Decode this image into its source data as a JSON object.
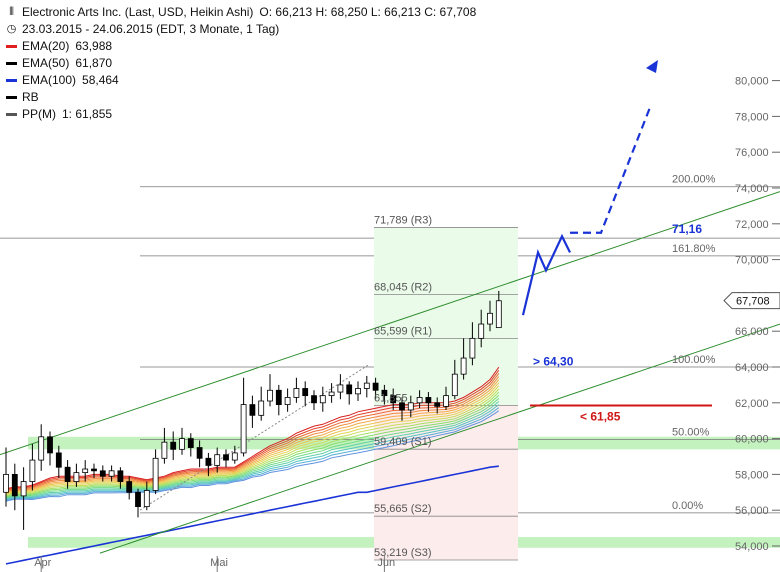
{
  "legend": {
    "title": "Electronic Arts Inc. (Last, USD, Heikin Ashi)",
    "ohlc": "O: 66,213  H: 68,250  L: 66,213  C: 67,708",
    "period": "23.03.2015 - 24.06.2015 (EDT, 3 Monate, 1 Tag)",
    "items": [
      {
        "label": "EMA(20)",
        "value": "63,988",
        "color": "#e0201e"
      },
      {
        "label": "EMA(50)",
        "value": "61,870",
        "color": "#000000"
      },
      {
        "label": "EMA(100)",
        "value": "58,464",
        "color": "#1a33d6"
      },
      {
        "label": "RB",
        "value": "",
        "color": "#000000"
      },
      {
        "label": "PP(M)",
        "value": "1: 61,855",
        "color": "#555555"
      }
    ]
  },
  "chart_data": {
    "type": "candlestick",
    "y_ticks": [
      "54,000",
      "56,000",
      "58,000",
      "60,000",
      "62,000",
      "64,000",
      "66,000",
      "68,000",
      "70,000",
      "72,000",
      "74,000",
      "76,000",
      "78,000",
      "80,000"
    ],
    "ylim": [
      53.5,
      80.6
    ],
    "x_labels": [
      {
        "label": "Apr",
        "i": 4
      },
      {
        "label": "Mai",
        "i": 24
      },
      {
        "label": "Jun",
        "i": 43
      }
    ],
    "last_price_label": "67,708",
    "pivot_levels": [
      {
        "label": "71,789 (R3)",
        "value": 71.789
      },
      {
        "label": "68,045 (R2)",
        "value": 68.045
      },
      {
        "label": "65,599 (R1)",
        "value": 65.599
      },
      {
        "label": "61,855",
        "value": 61.855
      },
      {
        "label": "59,409 (S1)",
        "value": 59.409
      },
      {
        "label": "55,665 (S2)",
        "value": 55.665
      },
      {
        "label": "53,219 (S3)",
        "value": 53.219
      }
    ],
    "fib_levels": [
      {
        "label": "200.00%",
        "value": 74.07
      },
      {
        "label": "161.80%",
        "value": 70.21
      },
      {
        "label": "100.00%",
        "value": 64.0
      },
      {
        "label": "50.00%",
        "value": 59.95
      },
      {
        "label": "0.00%",
        "value": 55.85
      }
    ],
    "annotations": [
      {
        "text": "71,16",
        "value": 71.16,
        "color": "#1a33d6"
      },
      {
        "text": "> 64,30",
        "value": 64.3,
        "color": "#1a33d6"
      },
      {
        "text": "< 61,85",
        "value": 61.85,
        "color": "#d01515"
      }
    ],
    "candles": [
      {
        "o": 57.0,
        "c": 58.0,
        "h": 59.5,
        "l": 56.2
      },
      {
        "o": 58.0,
        "c": 56.8,
        "h": 58.6,
        "l": 56.0
      },
      {
        "o": 56.8,
        "c": 57.6,
        "h": 58.4,
        "l": 54.9
      },
      {
        "o": 57.6,
        "c": 58.8,
        "h": 59.7,
        "l": 57.1
      },
      {
        "o": 58.8,
        "c": 60.1,
        "h": 60.8,
        "l": 58.2
      },
      {
        "o": 60.1,
        "c": 59.2,
        "h": 60.4,
        "l": 58.5
      },
      {
        "o": 59.2,
        "c": 58.4,
        "h": 59.6,
        "l": 57.8
      },
      {
        "o": 58.4,
        "c": 57.6,
        "h": 58.8,
        "l": 57.2
      },
      {
        "o": 57.6,
        "c": 58.1,
        "h": 58.6,
        "l": 57.3
      },
      {
        "o": 58.1,
        "c": 58.3,
        "h": 58.8,
        "l": 57.6
      },
      {
        "o": 58.3,
        "c": 58.2,
        "h": 58.6,
        "l": 57.8
      },
      {
        "o": 58.2,
        "c": 57.9,
        "h": 58.5,
        "l": 57.6
      },
      {
        "o": 57.9,
        "c": 58.2,
        "h": 58.5,
        "l": 57.6
      },
      {
        "o": 58.2,
        "c": 57.6,
        "h": 58.4,
        "l": 57.2
      },
      {
        "o": 57.6,
        "c": 57.0,
        "h": 57.9,
        "l": 56.6
      },
      {
        "o": 57.0,
        "c": 56.2,
        "h": 57.2,
        "l": 55.6
      },
      {
        "o": 56.2,
        "c": 57.1,
        "h": 57.6,
        "l": 56.0
      },
      {
        "o": 57.1,
        "c": 58.9,
        "h": 59.4,
        "l": 56.9
      },
      {
        "o": 58.9,
        "c": 59.8,
        "h": 60.6,
        "l": 58.6
      },
      {
        "o": 59.8,
        "c": 59.4,
        "h": 60.4,
        "l": 58.8
      },
      {
        "o": 59.4,
        "c": 60.0,
        "h": 60.6,
        "l": 59.1
      },
      {
        "o": 60.0,
        "c": 59.5,
        "h": 60.3,
        "l": 59.0
      },
      {
        "o": 59.5,
        "c": 58.9,
        "h": 59.9,
        "l": 58.4
      },
      {
        "o": 58.9,
        "c": 58.5,
        "h": 59.2,
        "l": 57.9
      },
      {
        "o": 58.5,
        "c": 59.1,
        "h": 59.5,
        "l": 58.1
      },
      {
        "o": 59.1,
        "c": 58.8,
        "h": 59.4,
        "l": 58.4
      },
      {
        "o": 58.8,
        "c": 59.2,
        "h": 59.6,
        "l": 58.6
      },
      {
        "o": 59.2,
        "c": 61.9,
        "h": 63.4,
        "l": 59.0
      },
      {
        "o": 61.9,
        "c": 61.3,
        "h": 62.4,
        "l": 60.6
      },
      {
        "o": 61.3,
        "c": 62.1,
        "h": 62.9,
        "l": 61.0
      },
      {
        "o": 62.1,
        "c": 62.7,
        "h": 63.6,
        "l": 61.8
      },
      {
        "o": 62.7,
        "c": 61.9,
        "h": 63.0,
        "l": 61.3
      },
      {
        "o": 61.9,
        "c": 62.3,
        "h": 62.8,
        "l": 61.5
      },
      {
        "o": 62.3,
        "c": 62.8,
        "h": 63.4,
        "l": 62.0
      },
      {
        "o": 62.8,
        "c": 62.4,
        "h": 63.2,
        "l": 61.8
      },
      {
        "o": 62.4,
        "c": 62.0,
        "h": 62.7,
        "l": 61.6
      },
      {
        "o": 62.0,
        "c": 62.4,
        "h": 62.9,
        "l": 61.5
      },
      {
        "o": 62.4,
        "c": 62.6,
        "h": 63.1,
        "l": 62.0
      },
      {
        "o": 62.6,
        "c": 63.0,
        "h": 63.6,
        "l": 62.2
      },
      {
        "o": 63.0,
        "c": 62.5,
        "h": 63.2,
        "l": 61.9
      },
      {
        "o": 62.5,
        "c": 62.8,
        "h": 63.2,
        "l": 62.1
      },
      {
        "o": 62.8,
        "c": 63.1,
        "h": 63.5,
        "l": 62.3
      },
      {
        "o": 63.1,
        "c": 62.7,
        "h": 63.4,
        "l": 62.2
      },
      {
        "o": 62.7,
        "c": 62.4,
        "h": 63.0,
        "l": 61.9
      },
      {
        "o": 62.4,
        "c": 62.0,
        "h": 62.8,
        "l": 61.6
      },
      {
        "o": 62.0,
        "c": 61.6,
        "h": 62.3,
        "l": 61.0
      },
      {
        "o": 61.6,
        "c": 62.0,
        "h": 62.4,
        "l": 61.2
      },
      {
        "o": 62.0,
        "c": 62.3,
        "h": 62.7,
        "l": 61.7
      },
      {
        "o": 62.3,
        "c": 62.0,
        "h": 62.6,
        "l": 61.5
      },
      {
        "o": 62.0,
        "c": 61.8,
        "h": 62.3,
        "l": 61.4
      },
      {
        "o": 61.8,
        "c": 62.4,
        "h": 62.9,
        "l": 61.6
      },
      {
        "o": 62.4,
        "c": 63.6,
        "h": 64.4,
        "l": 62.2
      },
      {
        "o": 63.6,
        "c": 64.5,
        "h": 65.6,
        "l": 63.3
      },
      {
        "o": 64.5,
        "c": 65.6,
        "h": 66.5,
        "l": 64.1
      },
      {
        "o": 65.6,
        "c": 66.4,
        "h": 67.2,
        "l": 65.1
      },
      {
        "o": 66.4,
        "c": 67.0,
        "h": 67.7,
        "l": 66.0
      },
      {
        "o": 66.2,
        "c": 67.7,
        "h": 68.25,
        "l": 66.2
      }
    ],
    "series": [
      {
        "name": "EMA(20)",
        "values": [
          57.2,
          57.3,
          57.3,
          57.4,
          57.6,
          57.8,
          57.9,
          57.9,
          57.9,
          57.9,
          58.0,
          58.0,
          58.0,
          57.9,
          57.9,
          57.8,
          57.7,
          57.8,
          57.9,
          58.1,
          58.2,
          58.3,
          58.3,
          58.3,
          58.4,
          58.4,
          58.4,
          58.7,
          59.0,
          59.3,
          59.6,
          59.8,
          60.0,
          60.3,
          60.5,
          60.7,
          60.8,
          61.0,
          61.2,
          61.3,
          61.5,
          61.6,
          61.7,
          61.8,
          61.9,
          61.9,
          61.9,
          62.0,
          62.0,
          62.0,
          62.0,
          62.1,
          62.3,
          62.6,
          62.9,
          63.3,
          63.99
        ]
      },
      {
        "name": "EMA(50)",
        "values": [
          56.6,
          56.7,
          56.7,
          56.7,
          56.8,
          56.9,
          56.9,
          57.0,
          57.0,
          57.0,
          57.1,
          57.1,
          57.1,
          57.1,
          57.1,
          57.1,
          57.1,
          57.1,
          57.2,
          57.3,
          57.4,
          57.4,
          57.5,
          57.5,
          57.6,
          57.6,
          57.7,
          57.8,
          58.0,
          58.1,
          58.3,
          58.4,
          58.5,
          58.7,
          58.8,
          58.9,
          59.0,
          59.2,
          59.3,
          59.4,
          59.5,
          59.6,
          59.7,
          59.8,
          59.9,
          60.0,
          60.1,
          60.2,
          60.3,
          60.4,
          60.5,
          60.6,
          60.8,
          61.0,
          61.2,
          61.5,
          61.87
        ]
      },
      {
        "name": "EMA(100)",
        "values": [
          53.0,
          53.1,
          53.2,
          53.3,
          53.4,
          53.5,
          53.6,
          53.7,
          53.8,
          53.9,
          54.0,
          54.1,
          54.2,
          54.3,
          54.4,
          54.5,
          54.6,
          54.7,
          54.8,
          54.9,
          55.0,
          55.1,
          55.2,
          55.3,
          55.4,
          55.5,
          55.6,
          55.7,
          55.8,
          55.9,
          56.0,
          56.1,
          56.2,
          56.3,
          56.4,
          56.5,
          56.6,
          56.7,
          56.8,
          56.9,
          57.0,
          57.0,
          57.1,
          57.2,
          57.3,
          57.4,
          57.5,
          57.6,
          57.7,
          57.8,
          57.9,
          58.0,
          58.1,
          58.2,
          58.3,
          58.4,
          58.46
        ]
      }
    ]
  }
}
